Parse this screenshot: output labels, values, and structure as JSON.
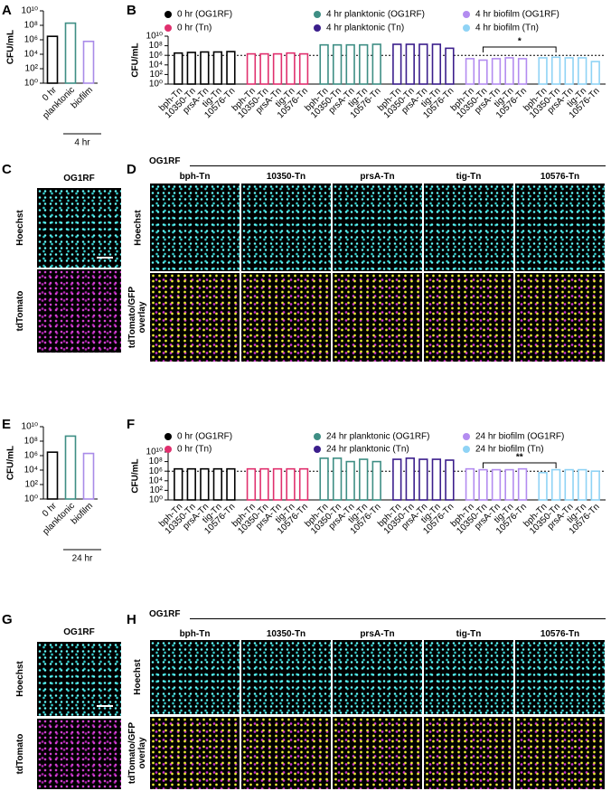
{
  "chart_data": [
    {
      "type": "bar",
      "panel_label": "A",
      "y_label": "CFU/mL",
      "log_y": true,
      "categories": [
        "0 hr",
        "planktonic",
        "biofilm"
      ],
      "values": [
        3000000,
        200000000,
        600000
      ],
      "colors": [
        "#000000",
        "#3e8e84",
        "#a98be8"
      ],
      "group_label": "4 hr",
      "ylim": [
        1,
        10000000000
      ],
      "yticks": [
        {
          "value": 1,
          "label": "10⁰"
        },
        {
          "value": 100,
          "label": "10²"
        },
        {
          "value": 10000,
          "label": "10⁴"
        },
        {
          "value": 1000000,
          "label": "10⁶"
        },
        {
          "value": 100000000,
          "label": "10⁸"
        },
        {
          "value": 10000000000,
          "label": "10¹⁰"
        }
      ]
    },
    {
      "type": "bar",
      "panel_label": "B",
      "y_label": "CFU/mL",
      "log_y": true,
      "categories": [
        "bph-Tn",
        "10350-Tn",
        "prsA-Tn",
        "tig-Tn",
        "10576-Tn"
      ],
      "series": [
        {
          "name": "0 hr (OG1RF)",
          "color": "#000000",
          "values": [
            3000000,
            4000000,
            5000000,
            5000000,
            6000000
          ]
        },
        {
          "name": "0 hr (Tn)",
          "color": "#e0306e",
          "values": [
            2000000,
            2000000,
            2000000,
            3000000,
            2000000
          ]
        },
        {
          "name": "4 hr planktonic (OG1RF)",
          "color": "#3e8e84",
          "values": [
            150000000,
            150000000,
            150000000,
            150000000,
            200000000
          ]
        },
        {
          "name": "4 hr planktonic (Tn)",
          "color": "#3b1e8c",
          "values": [
            200000000,
            200000000,
            200000000,
            200000000,
            30000000
          ]
        },
        {
          "name": "4 hr biofilm (OG1RF)",
          "color": "#b38cf0",
          "values": [
            200000,
            100000,
            200000,
            300000,
            200000
          ]
        },
        {
          "name": "4 hr biofilm (Tn)",
          "color": "#8fd3f5",
          "values": [
            300000,
            400000,
            300000,
            300000,
            50000
          ]
        }
      ],
      "reference_line": 1000000,
      "significance": "*",
      "ylim": [
        1,
        10000000000
      ],
      "yticks": [
        {
          "value": 1,
          "label": "10⁰"
        },
        {
          "value": 100,
          "label": "10²"
        },
        {
          "value": 10000,
          "label": "10⁴"
        },
        {
          "value": 1000000,
          "label": "10⁶"
        },
        {
          "value": 100000000,
          "label": "10⁸"
        },
        {
          "value": 10000000000,
          "label": "10¹⁰"
        }
      ]
    },
    {
      "type": "bar",
      "panel_label": "E",
      "y_label": "CFU/mL",
      "log_y": true,
      "categories": [
        "0 hr",
        "planktonic",
        "biofilm"
      ],
      "values": [
        3000000,
        500000000,
        2000000
      ],
      "colors": [
        "#000000",
        "#3e8e84",
        "#a98be8"
      ],
      "group_label": "24 hr",
      "ylim": [
        1,
        10000000000
      ],
      "yticks": [
        {
          "value": 1,
          "label": "10⁰"
        },
        {
          "value": 100,
          "label": "10²"
        },
        {
          "value": 10000,
          "label": "10⁴"
        },
        {
          "value": 1000000,
          "label": "10⁶"
        },
        {
          "value": 100000000,
          "label": "10⁸"
        },
        {
          "value": 10000000000,
          "label": "10¹⁰"
        }
      ]
    },
    {
      "type": "bar",
      "panel_label": "F",
      "y_label": "CFU/mL",
      "log_y": true,
      "categories": [
        "bph-Tn",
        "10350-Tn",
        "prsA-Tn",
        "tig-Tn",
        "10576-Tn"
      ],
      "series": [
        {
          "name": "0 hr (OG1RF)",
          "color": "#000000",
          "values": [
            3000000,
            3000000,
            3000000,
            3000000,
            3000000
          ]
        },
        {
          "name": "0 hr (Tn)",
          "color": "#e0306e",
          "values": [
            3000000,
            3000000,
            3000000,
            3000000,
            3000000
          ]
        },
        {
          "name": "24 hr planktonic (OG1RF)",
          "color": "#3e8e84",
          "values": [
            500000000,
            500000000,
            100000000,
            300000000,
            100000000
          ]
        },
        {
          "name": "24 hr planktonic (Tn)",
          "color": "#3b1e8c",
          "values": [
            300000000,
            500000000,
            300000000,
            300000000,
            200000000
          ]
        },
        {
          "name": "24 hr biofilm (OG1RF)",
          "color": "#b38cf0",
          "values": [
            3000000,
            2000000,
            2000000,
            2000000,
            3000000
          ]
        },
        {
          "name": "24 hr biofilm (Tn)",
          "color": "#8fd3f5",
          "values": [
            500000,
            2000000,
            2000000,
            2000000,
            1000000
          ]
        }
      ],
      "reference_line": 1000000,
      "significance": "**",
      "ylim": [
        1,
        10000000000
      ],
      "yticks": [
        {
          "value": 1,
          "label": "10⁰"
        },
        {
          "value": 100,
          "label": "10²"
        },
        {
          "value": 10000,
          "label": "10⁴"
        },
        {
          "value": 1000000,
          "label": "10⁶"
        },
        {
          "value": 100000000,
          "label": "10⁸"
        },
        {
          "value": 10000000000,
          "label": "10¹⁰"
        }
      ]
    }
  ],
  "image_panels": [
    {
      "panel_label": "C",
      "header": "OG1RF",
      "rows": [
        "Hoechst",
        "tdTomato"
      ]
    },
    {
      "panel_label": "D",
      "header": "OG1RF",
      "columns": [
        "bph-Tn",
        "10350-Tn",
        "prsA-Tn",
        "tig-Tn",
        "10576-Tn"
      ],
      "rows": [
        "Hoechst",
        "tdTomato/GFP overlay"
      ]
    },
    {
      "panel_label": "G",
      "header": "OG1RF",
      "rows": [
        "Hoechst",
        "tdTomato"
      ]
    },
    {
      "panel_label": "H",
      "header": "OG1RF",
      "columns": [
        "bph-Tn",
        "10350-Tn",
        "prsA-Tn",
        "tig-Tn",
        "10576-Tn"
      ],
      "rows": [
        "Hoechst",
        "tdTomato/GFP overlay"
      ]
    }
  ]
}
